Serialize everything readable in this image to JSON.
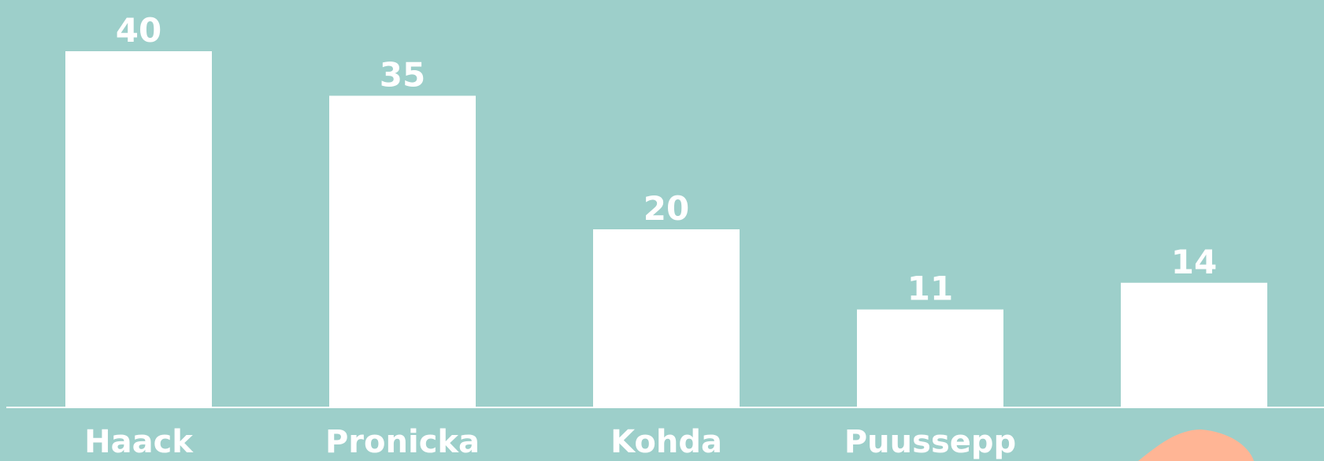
{
  "chart_data": {
    "type": "bar",
    "categories": [
      "Haack",
      "Pronicka",
      "Kohda",
      "Puussepp",
      null
    ],
    "values": [
      40,
      35,
      20,
      11,
      14
    ],
    "color": "#ffffff",
    "ylim": [
      0,
      40
    ]
  }
}
